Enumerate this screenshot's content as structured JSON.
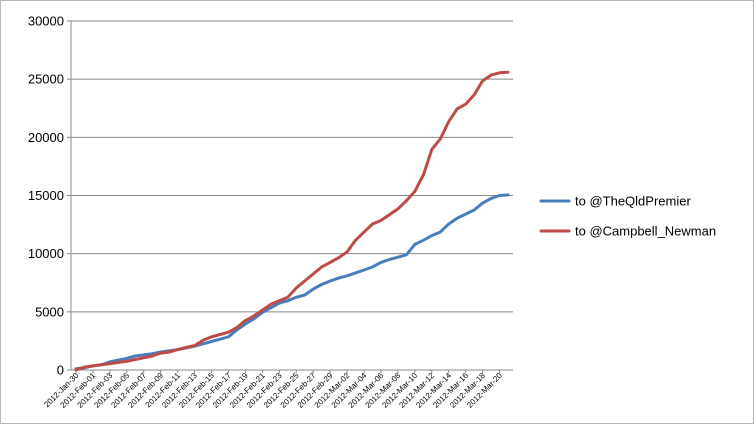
{
  "chart_data": {
    "type": "line",
    "title": "",
    "xlabel": "",
    "ylabel": "",
    "ylim": [
      0,
      30000
    ],
    "yticks": [
      0,
      5000,
      10000,
      15000,
      20000,
      25000,
      30000
    ],
    "y_tick_labels": [
      "0",
      "5000",
      "10000",
      "15000",
      "20000",
      "25000",
      "30000"
    ],
    "grid": "horizontal major gridlines",
    "legend_position": "right",
    "x": [
      "2012-Jan-30",
      "2012-Jan-31",
      "2012-Feb-01",
      "2012-Feb-02",
      "2012-Feb-03",
      "2012-Feb-04",
      "2012-Feb-05",
      "2012-Feb-06",
      "2012-Feb-07",
      "2012-Feb-08",
      "2012-Feb-09",
      "2012-Feb-10",
      "2012-Feb-11",
      "2012-Feb-12",
      "2012-Feb-13",
      "2012-Feb-14",
      "2012-Feb-15",
      "2012-Feb-16",
      "2012-Feb-17",
      "2012-Feb-18",
      "2012-Feb-19",
      "2012-Feb-20",
      "2012-Feb-21",
      "2012-Feb-22",
      "2012-Feb-23",
      "2012-Feb-24",
      "2012-Feb-25",
      "2012-Feb-26",
      "2012-Feb-27",
      "2012-Feb-28",
      "2012-Feb-29",
      "2012-Mar-01",
      "2012-Mar-02",
      "2012-Mar-03",
      "2012-Mar-04",
      "2012-Mar-05",
      "2012-Mar-06",
      "2012-Mar-07",
      "2012-Mar-08",
      "2012-Mar-09",
      "2012-Mar-10",
      "2012-Mar-11",
      "2012-Mar-12",
      "2012-Mar-13",
      "2012-Mar-14",
      "2012-Mar-15",
      "2012-Mar-16",
      "2012-Mar-17",
      "2012-Mar-18",
      "2012-Mar-19",
      "2012-Mar-20",
      "2012-Mar-21"
    ],
    "x_tick_labels": [
      "2012-Jan-30",
      "2012-Feb-01",
      "2012-Feb-03",
      "2012-Feb-05",
      "2012-Feb-07",
      "2012-Feb-09",
      "2012-Feb-11",
      "2012-Feb-13",
      "2012-Feb-15",
      "2012-Feb-17",
      "2012-Feb-19",
      "2012-Feb-21",
      "2012-Feb-23",
      "2012-Feb-25",
      "2012-Feb-27",
      "2012-Feb-29",
      "2012-Mar-02",
      "2012-Mar-04",
      "2012-Mar-06",
      "2012-Mar-08",
      "2012-Mar-10",
      "2012-Mar-12",
      "2012-Mar-14",
      "2012-Mar-16",
      "2012-Mar-18",
      "2012-Mar-20"
    ],
    "series": [
      {
        "name": "to @TheQldPremier",
        "color": "#4a7ebb",
        "values": [
          100,
          200,
          350,
          450,
          700,
          850,
          1000,
          1200,
          1300,
          1400,
          1550,
          1650,
          1750,
          1900,
          2050,
          2250,
          2450,
          2650,
          2850,
          3450,
          3950,
          4400,
          4950,
          5350,
          5750,
          5950,
          6250,
          6450,
          6950,
          7350,
          7650,
          7900,
          8100,
          8350,
          8600,
          8850,
          9250,
          9500,
          9700,
          9900,
          10800,
          11150,
          11550,
          11850,
          12550,
          13050,
          13400,
          13750,
          14350,
          14750,
          15000,
          15050
        ]
      },
      {
        "name": "to @Campbell_Newman",
        "color": "#be4b48",
        "values": [
          0,
          250,
          350,
          450,
          550,
          650,
          750,
          900,
          1050,
          1200,
          1450,
          1550,
          1750,
          1950,
          2100,
          2550,
          2850,
          3050,
          3250,
          3650,
          4250,
          4650,
          5150,
          5650,
          5950,
          6250,
          7050,
          7650,
          8250,
          8850,
          9250,
          9650,
          10150,
          11150,
          11850,
          12550,
          12850,
          13350,
          13850,
          14550,
          15350,
          16750,
          18950,
          19850,
          21350,
          22450,
          22850,
          23650,
          24850,
          25350,
          25550,
          25600
        ]
      }
    ]
  }
}
